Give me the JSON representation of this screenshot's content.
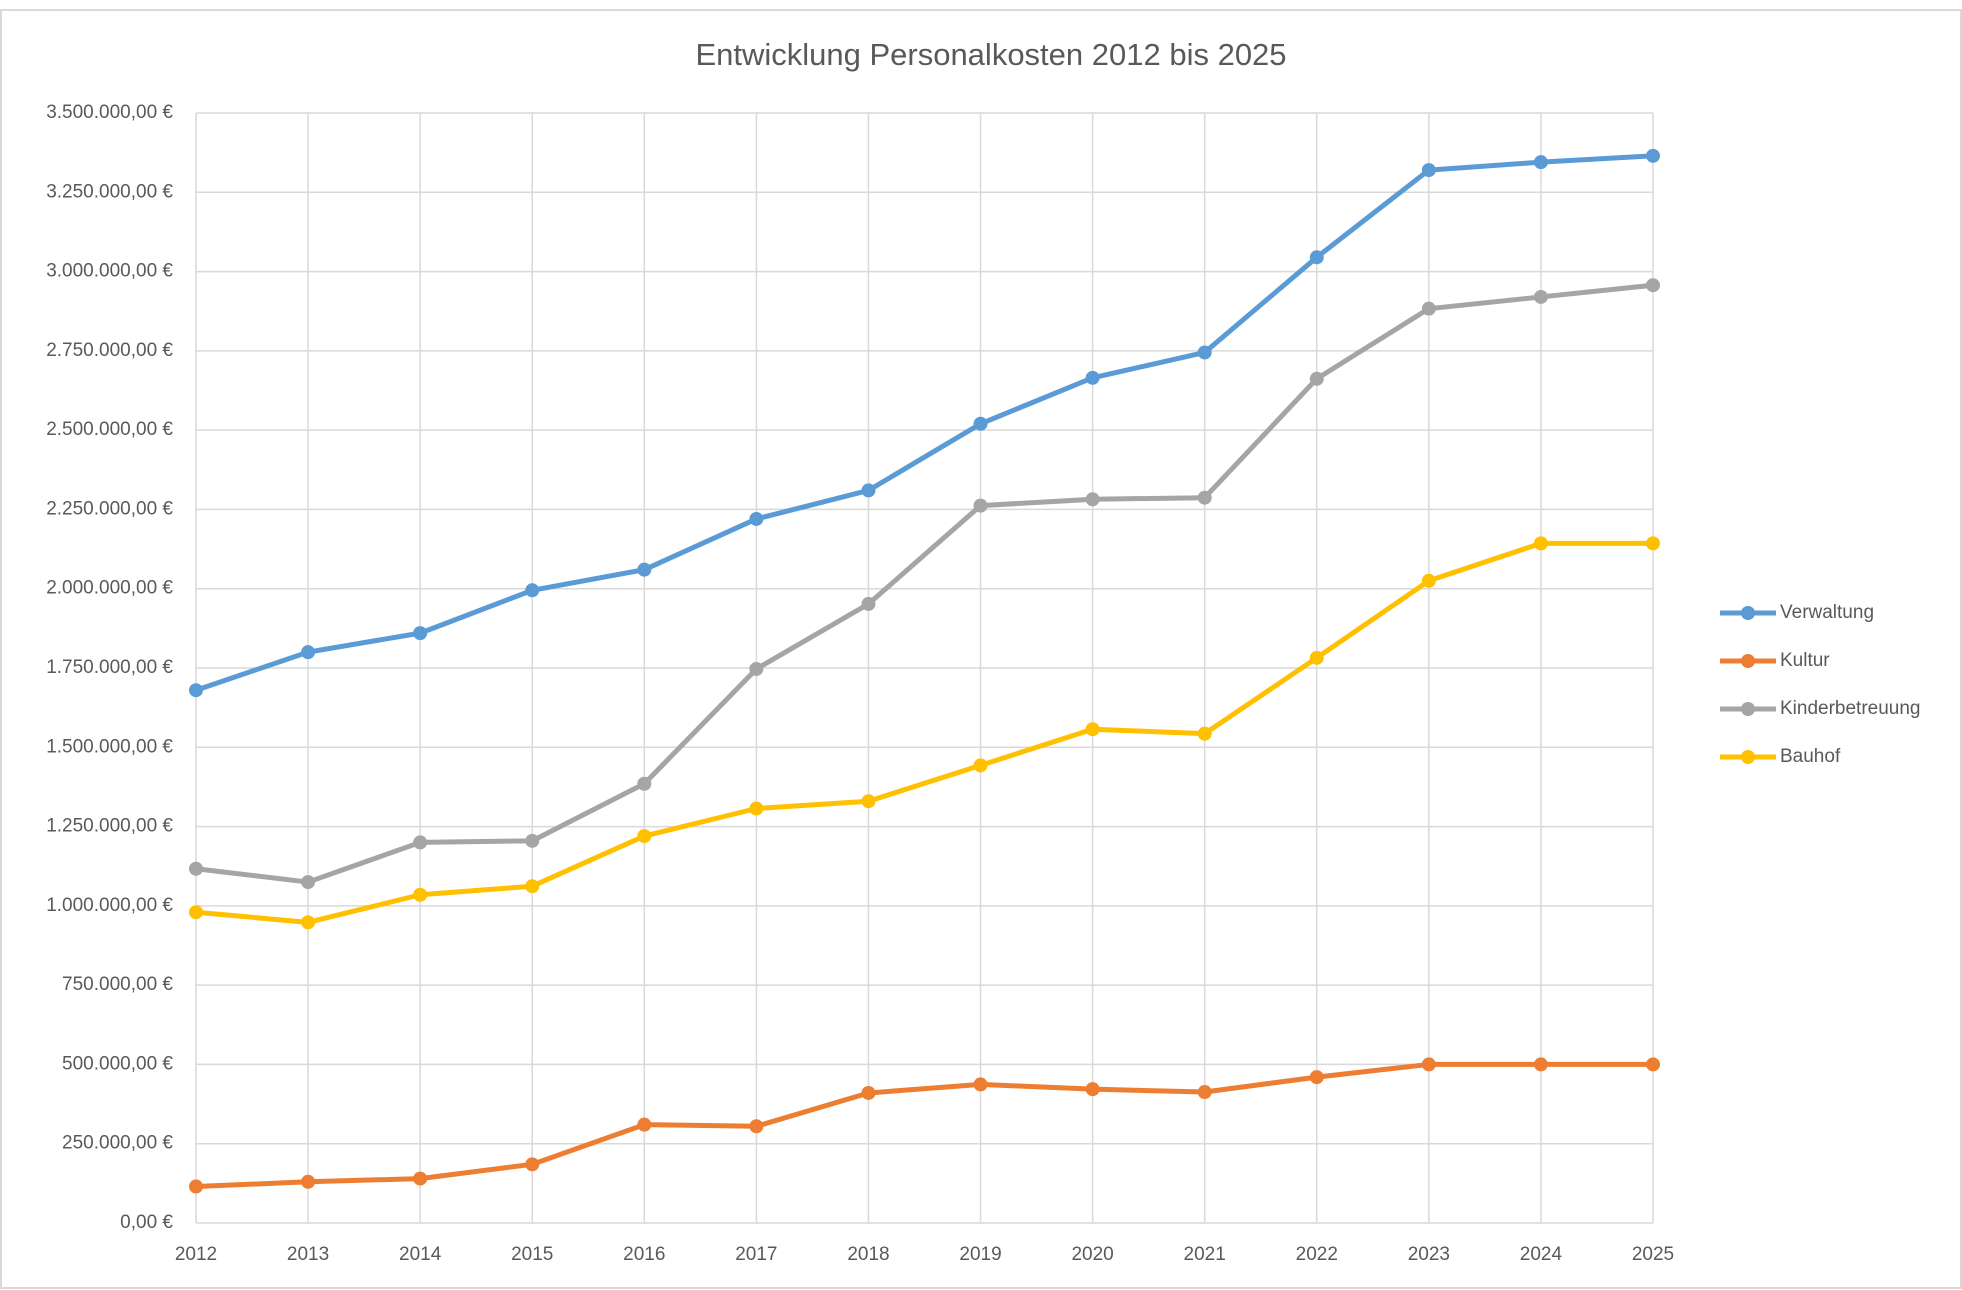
{
  "chart_data": {
    "type": "line",
    "title": "Entwicklung Personalkosten 2012 bis 2025",
    "categories": [
      "2012",
      "2013",
      "2014",
      "2015",
      "2016",
      "2017",
      "2018",
      "2019",
      "2020",
      "2021",
      "2022",
      "2023",
      "2024",
      "2025"
    ],
    "series": [
      {
        "name": "Verwaltung",
        "color": "#5b9bd5",
        "values": [
          1680000,
          1800000,
          1860000,
          1995000,
          2060000,
          2220000,
          2310000,
          2520000,
          2665000,
          2745000,
          3045000,
          3320000,
          3345000,
          3365000
        ]
      },
      {
        "name": "Kultur",
        "color": "#ed7d31",
        "values": [
          115000,
          130000,
          140000,
          185000,
          310000,
          305000,
          410000,
          437000,
          422000,
          413000,
          460000,
          500000,
          500000,
          500000
        ]
      },
      {
        "name": "Kinderbetreuung",
        "color": "#a5a5a5",
        "values": [
          1117000,
          1075000,
          1200000,
          1205000,
          1385000,
          1747000,
          1952000,
          2262000,
          2282000,
          2287000,
          2662000,
          2883000,
          2920000,
          2957000
        ]
      },
      {
        "name": "Bauhof",
        "color": "#ffc000",
        "values": [
          980000,
          948000,
          1035000,
          1062000,
          1220000,
          1307000,
          1330000,
          1443000,
          1557000,
          1543000,
          1782000,
          2025000,
          2143000,
          2143000
        ]
      }
    ],
    "ylim": [
      0,
      3500000
    ],
    "yticks": [
      {
        "value": 0,
        "label": "0,00 €"
      },
      {
        "value": 250000,
        "label": "250.000,00 €"
      },
      {
        "value": 500000,
        "label": "500.000,00 €"
      },
      {
        "value": 750000,
        "label": "750.000,00 €"
      },
      {
        "value": 1000000,
        "label": "1.000.000,00 €"
      },
      {
        "value": 1250000,
        "label": "1.250.000,00 €"
      },
      {
        "value": 1500000,
        "label": "1.500.000,00 €"
      },
      {
        "value": 1750000,
        "label": "1.750.000,00 €"
      },
      {
        "value": 2000000,
        "label": "2.000.000,00 €"
      },
      {
        "value": 2250000,
        "label": "2.250.000,00 €"
      },
      {
        "value": 2500000,
        "label": "2.500.000,00 €"
      },
      {
        "value": 2750000,
        "label": "2.750.000,00 €"
      },
      {
        "value": 3000000,
        "label": "3.000.000,00 €"
      },
      {
        "value": 3250000,
        "label": "3.250.000,00 €"
      },
      {
        "value": 3500000,
        "label": "3.500.000,00 €"
      }
    ],
    "grid": true,
    "legend": "right"
  }
}
